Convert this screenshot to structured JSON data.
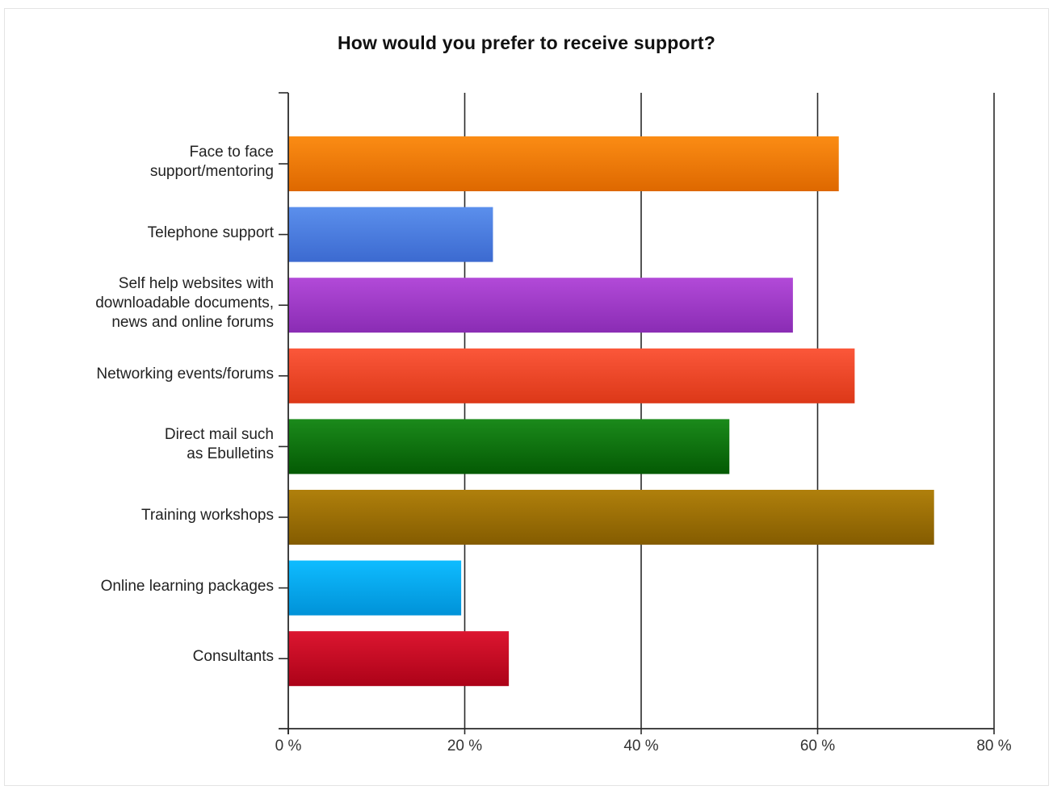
{
  "chart_data": {
    "type": "bar",
    "orientation": "horizontal",
    "title": "How would you prefer to receive support?",
    "categories": [
      "Face to face\nsupport/mentoring",
      "Telephone support",
      "Self help websites with\ndownloadable documents,\nnews and online forums",
      "Networking events/forums",
      "Direct mail such\nas Ebulletins",
      "Training workshops",
      "Online learning packages",
      "Consultants"
    ],
    "values": [
      62.4,
      23.2,
      57.2,
      64.2,
      50.0,
      73.2,
      19.6,
      25.0
    ],
    "unit": "%",
    "xlim": [
      0,
      80
    ],
    "xticks": [
      "0 %",
      "20 %",
      "40 %",
      "60 %",
      "80 %"
    ],
    "grid": true,
    "legend": "none",
    "colors": [
      {
        "top": "#fb8c14",
        "bottom": "#de6800"
      },
      {
        "top": "#5b8fec",
        "bottom": "#3c6ad0"
      },
      {
        "top": "#b24ad8",
        "bottom": "#8a2cb4"
      },
      {
        "top": "#fb573a",
        "bottom": "#dc3818"
      },
      {
        "top": "#1b8a1b",
        "bottom": "#045a04"
      },
      {
        "top": "#b0800c",
        "bottom": "#845c00"
      },
      {
        "top": "#0fbcff",
        "bottom": "#0092d8"
      },
      {
        "top": "#dc1630",
        "bottom": "#ac0218"
      }
    ]
  }
}
